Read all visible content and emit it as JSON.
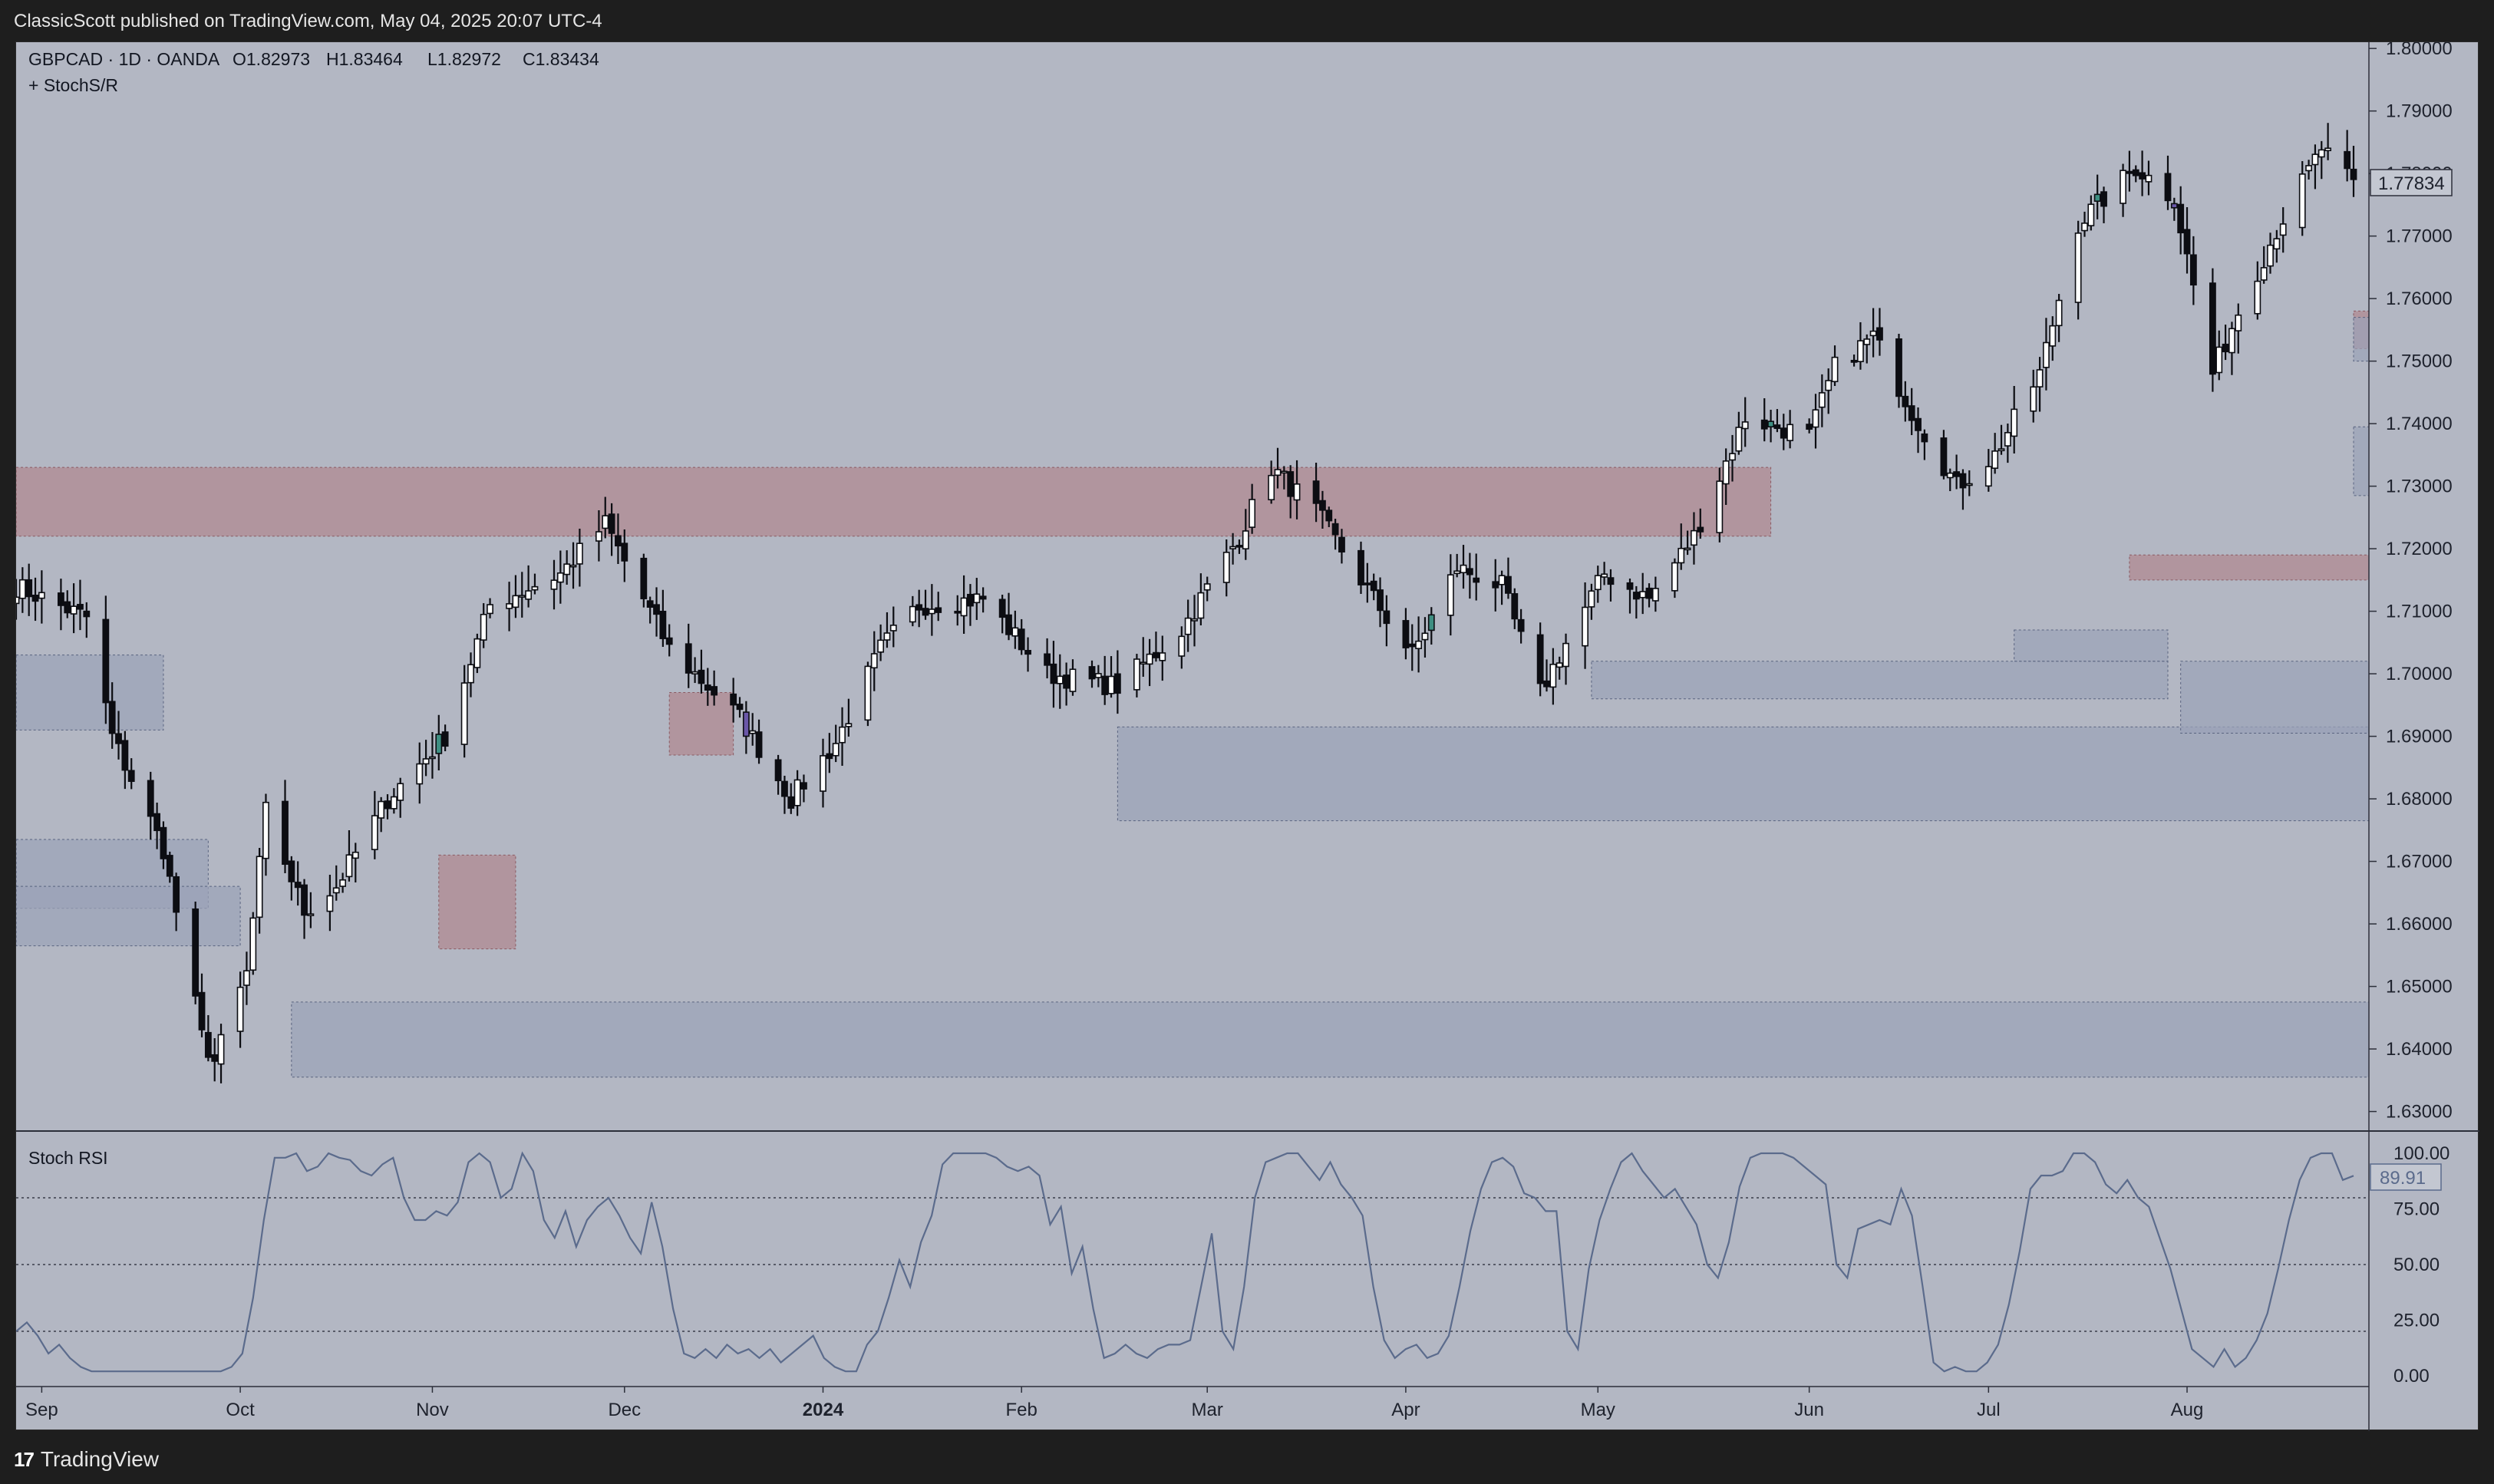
{
  "header": {
    "published_by": "ClassicScott published on TradingView.com, May 04, 2025 20:07 UTC-4"
  },
  "legend": {
    "symbol_line": "GBPCAD · 1D · OANDA",
    "open": "O1.82973",
    "high": "H1.83464",
    "low": "L1.82972",
    "close": "C1.83434",
    "indicator": "+ StochS/R"
  },
  "price_axis": {
    "ticks": [
      "1.80000",
      "1.79000",
      "1.78000",
      "1.77000",
      "1.76000",
      "1.75000",
      "1.74000",
      "1.73000",
      "1.72000",
      "1.71000",
      "1.70000",
      "1.69000",
      "1.68000",
      "1.67000",
      "1.66000",
      "1.65000",
      "1.64000",
      "1.63000"
    ],
    "current_price_label": "1.77834"
  },
  "stoch_pane": {
    "title": "Stoch RSI",
    "ticks": [
      "100.00",
      "75.00",
      "50.00",
      "25.00",
      "0.00"
    ],
    "current_value_label": "89.91",
    "levels": [
      80,
      50,
      20
    ]
  },
  "time_axis": {
    "labels": [
      "Sep",
      "Oct",
      "Nov",
      "Dec",
      "2024",
      "Feb",
      "Mar",
      "Apr",
      "May",
      "Jun",
      "Jul",
      "Aug"
    ]
  },
  "footer": {
    "brand": "TradingView"
  },
  "colors": {
    "background": "#b3b7c3",
    "bull_body": "#ffffff",
    "bear_body": "#0c0d12",
    "resistance_zone": "#b08a91",
    "support_zone": "#9ba3b8",
    "stoch_line": "#5b6b8c",
    "accent_teal": "#3e8f82",
    "accent_purple": "#6a57a8"
  },
  "zones": [
    {
      "type": "resistance",
      "start_bar": 0,
      "end_bar": 196,
      "low": 1.722,
      "high": 1.733
    },
    {
      "type": "resistance",
      "start_bar": 48,
      "end_bar": 56,
      "low": 1.656,
      "high": 1.671
    },
    {
      "type": "resistance",
      "start_bar": 74,
      "end_bar": 80,
      "low": 1.687,
      "high": 1.697
    },
    {
      "type": "resistance",
      "start_bar": 236,
      "end_bar": 262,
      "low": 1.715,
      "high": 1.719
    },
    {
      "type": "resistance",
      "start_bar": 294,
      "end_bar": 322,
      "low": 1.752,
      "high": 1.758
    },
    {
      "type": "support",
      "start_bar": 0,
      "end_bar": 17,
      "low": 1.691,
      "high": 1.703
    },
    {
      "type": "support",
      "start_bar": 0,
      "end_bar": 22,
      "low": 1.6625,
      "high": 1.6735
    },
    {
      "type": "support",
      "start_bar": 0,
      "end_bar": 25,
      "low": 1.6565,
      "high": 1.666
    },
    {
      "type": "support",
      "start_bar": 31,
      "end_bar": 370,
      "low": 1.6355,
      "high": 1.6475
    },
    {
      "type": "support",
      "start_bar": 124,
      "end_bar": 370,
      "low": 1.6765,
      "high": 1.6915
    },
    {
      "type": "support",
      "start_bar": 176,
      "end_bar": 240,
      "low": 1.696,
      "high": 1.702
    },
    {
      "type": "support",
      "start_bar": 224,
      "end_bar": 240,
      "low": 1.702,
      "high": 1.707
    },
    {
      "type": "support",
      "start_bar": 242,
      "end_bar": 370,
      "low": 1.6905,
      "high": 1.702
    },
    {
      "type": "support",
      "start_bar": 315,
      "end_bar": 370,
      "low": 1.7285,
      "high": 1.7395
    },
    {
      "type": "support",
      "start_bar": 356,
      "end_bar": 370,
      "low": 1.75,
      "high": 1.757
    }
  ],
  "chart_data": {
    "type": "candlestick",
    "symbol": "GBPCAD",
    "timeframe": "1D",
    "x_start": "2023-08-28",
    "x_end": "2024-08-27",
    "ylim": [
      1.627,
      1.801
    ],
    "anchors": [
      {
        "date": "2023-08-28",
        "close": 1.714
      },
      {
        "date": "2023-09-08",
        "close": 1.709
      },
      {
        "date": "2023-09-12",
        "close": 1.69
      },
      {
        "date": "2023-09-20",
        "close": 1.672
      },
      {
        "date": "2023-09-26",
        "close": 1.642
      },
      {
        "date": "2023-09-28",
        "close": 1.638
      },
      {
        "date": "2023-10-03",
        "close": 1.652
      },
      {
        "date": "2023-10-06",
        "close": 1.678
      },
      {
        "date": "2023-10-12",
        "close": 1.662
      },
      {
        "date": "2023-10-17",
        "close": 1.666
      },
      {
        "date": "2023-10-25",
        "close": 1.68
      },
      {
        "date": "2023-11-03",
        "close": 1.69
      },
      {
        "date": "2023-11-10",
        "close": 1.711
      },
      {
        "date": "2023-11-21",
        "close": 1.716
      },
      {
        "date": "2023-11-28",
        "close": 1.724
      },
      {
        "date": "2023-12-08",
        "close": 1.704
      },
      {
        "date": "2023-12-19",
        "close": 1.693
      },
      {
        "date": "2023-12-27",
        "close": 1.68
      },
      {
        "date": "2024-01-03",
        "close": 1.689
      },
      {
        "date": "2024-01-10",
        "close": 1.704
      },
      {
        "date": "2024-01-16",
        "close": 1.711
      },
      {
        "date": "2024-01-26",
        "close": 1.712
      },
      {
        "date": "2024-02-05",
        "close": 1.7
      },
      {
        "date": "2024-02-16",
        "close": 1.698
      },
      {
        "date": "2024-02-26",
        "close": 1.707
      },
      {
        "date": "2024-03-06",
        "close": 1.722
      },
      {
        "date": "2024-03-11",
        "close": 1.733
      },
      {
        "date": "2024-03-18",
        "close": 1.726
      },
      {
        "date": "2024-03-27",
        "close": 1.712
      },
      {
        "date": "2024-04-02",
        "close": 1.703
      },
      {
        "date": "2024-04-09",
        "close": 1.717
      },
      {
        "date": "2024-04-16",
        "close": 1.714
      },
      {
        "date": "2024-04-22",
        "close": 1.697
      },
      {
        "date": "2024-04-25",
        "close": 1.703
      },
      {
        "date": "2024-05-02",
        "close": 1.716
      },
      {
        "date": "2024-05-09",
        "close": 1.712
      },
      {
        "date": "2024-05-16",
        "close": 1.722
      },
      {
        "date": "2024-05-24",
        "close": 1.741
      },
      {
        "date": "2024-06-03",
        "close": 1.738
      },
      {
        "date": "2024-06-07",
        "close": 1.749
      },
      {
        "date": "2024-06-13",
        "close": 1.754
      },
      {
        "date": "2024-06-19",
        "close": 1.742
      },
      {
        "date": "2024-06-26",
        "close": 1.73
      },
      {
        "date": "2024-07-02",
        "close": 1.735
      },
      {
        "date": "2024-07-09",
        "close": 1.748
      },
      {
        "date": "2024-07-15",
        "close": 1.772
      },
      {
        "date": "2024-07-19",
        "close": 1.776
      },
      {
        "date": "2024-07-24",
        "close": 1.781
      },
      {
        "date": "2024-07-30",
        "close": 1.776
      },
      {
        "date": "2024-08-05",
        "close": 1.748
      },
      {
        "date": "2024-08-09",
        "close": 1.758
      },
      {
        "date": "2024-08-15",
        "close": 1.771
      },
      {
        "date": "2024-08-22",
        "close": 1.784
      },
      {
        "date": "2024-08-27",
        "close": 1.778
      }
    ],
    "stoch_rsi": [
      20,
      24,
      18,
      10,
      14,
      8,
      4,
      2,
      2,
      2,
      2,
      2,
      2,
      2,
      2,
      2,
      2,
      2,
      2,
      2,
      4,
      10,
      35,
      70,
      98,
      98,
      100,
      92,
      94,
      100,
      98,
      97,
      92,
      90,
      95,
      98,
      80,
      70,
      70,
      74,
      72,
      78,
      96,
      100,
      96,
      80,
      84,
      100,
      92,
      70,
      62,
      74,
      58,
      70,
      76,
      80,
      72,
      62,
      55,
      78,
      58,
      30,
      10,
      8,
      12,
      8,
      14,
      10,
      12,
      8,
      12,
      6,
      10,
      14,
      18,
      8,
      4,
      2,
      2,
      14,
      20,
      35,
      52,
      40,
      60,
      72,
      95,
      100,
      100,
      100,
      100,
      98,
      94,
      92,
      94,
      90,
      68,
      76,
      46,
      58,
      30,
      8,
      10,
      14,
      10,
      8,
      12,
      14,
      14,
      16,
      40,
      64,
      20,
      12,
      40,
      80,
      96,
      98,
      100,
      100,
      94,
      88,
      96,
      86,
      80,
      72,
      40,
      16,
      8,
      12,
      14,
      8,
      10,
      18,
      40,
      65,
      84,
      96,
      98,
      94,
      82,
      80,
      74,
      74,
      20,
      12,
      48,
      70,
      84,
      96,
      100,
      92,
      86,
      80,
      84,
      76,
      68,
      50,
      44,
      60,
      85,
      98,
      100,
      100,
      100,
      98,
      94,
      90,
      86,
      50,
      44,
      66,
      68,
      70,
      68,
      84,
      72,
      40,
      6,
      2,
      4,
      2,
      2,
      6,
      14,
      32,
      56,
      84,
      90,
      90,
      92,
      100,
      100,
      96,
      86,
      82,
      88,
      80,
      76,
      62,
      48,
      30,
      12,
      8,
      4,
      12,
      4,
      8,
      16,
      28,
      48,
      70,
      88,
      98,
      100,
      100,
      88,
      89.91
    ]
  }
}
